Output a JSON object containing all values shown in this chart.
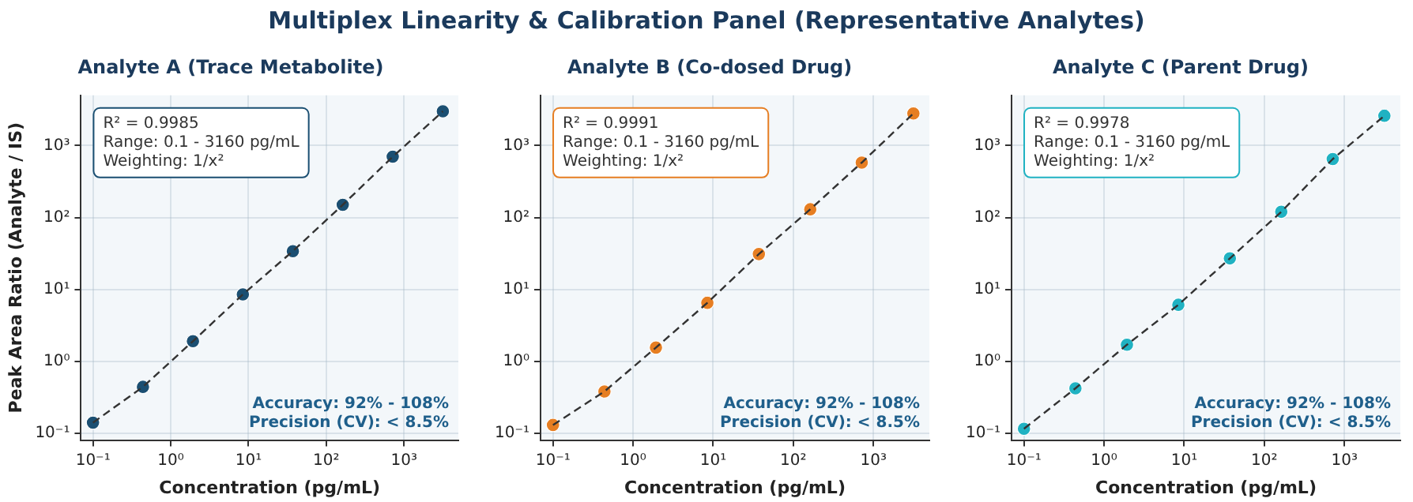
{
  "chart_data": [
    {
      "type": "other",
      "title": "Multiplex Linearity & Calibration Panel (Representative Analytes)"
    },
    {
      "type": "scatter",
      "title": "Analyte A (Trace Metabolite)",
      "xlabel": "Concentration (pg/mL)",
      "ylabel": "Peak Area Ratio (Analyte / IS)",
      "log": "xy",
      "grid": true,
      "marker": "circle",
      "x": [
        0.1,
        0.439,
        1.93,
        8.46,
        37.2,
        163,
        716,
        3160
      ],
      "series": [
        {
          "color": "#1b4f72",
          "values": [
            0.14,
            0.44,
            1.9,
            8.5,
            34,
            150,
            700,
            3000
          ]
        },
        {
          "type": "line",
          "line_style": "dashed",
          "color": "#333333",
          "values": [
            0.14,
            0.44,
            1.9,
            8.5,
            34,
            150,
            700,
            3000
          ],
          "marker": "none"
        }
      ],
      "xlim": [
        0.07,
        5000
      ],
      "ylim": [
        0.08,
        5000
      ],
      "xticks": [
        {
          "value": 0.1,
          "label": "10⁻¹"
        },
        {
          "value": 1,
          "label": "10⁰"
        },
        {
          "value": 10,
          "label": "10¹"
        },
        {
          "value": 100,
          "label": "10²"
        },
        {
          "value": 1000,
          "label": "10³"
        }
      ],
      "yticks": [
        {
          "value": 0.1,
          "label": "10⁻¹"
        },
        {
          "value": 1,
          "label": "10⁰"
        },
        {
          "value": 10,
          "label": "10¹"
        },
        {
          "value": 100,
          "label": "10²"
        },
        {
          "value": 1000,
          "label": "10³"
        }
      ],
      "annotations": [
        "R² = 0.9985",
        "Range: 0.1 - 3160 pg/mL",
        "Weighting: 1/x²",
        "Accuracy: 92% - 108%",
        "Precision (CV): < 8.5%"
      ]
    },
    {
      "type": "scatter",
      "title": "Analyte B (Co-dosed Drug)",
      "xlabel": "Concentration (pg/mL)",
      "log": "xy",
      "grid": true,
      "marker": "circle",
      "x": [
        0.1,
        0.439,
        1.93,
        8.46,
        37.2,
        163,
        716,
        3160
      ],
      "series": [
        {
          "color": "#e67e22",
          "values": [
            0.13,
            0.38,
            1.55,
            6.5,
            31,
            130,
            580,
            2800
          ]
        },
        {
          "type": "line",
          "line_style": "dashed",
          "color": "#333333",
          "values": [
            0.13,
            0.38,
            1.55,
            6.5,
            31,
            130,
            580,
            2800
          ],
          "marker": "none"
        }
      ],
      "xlim": [
        0.07,
        5000
      ],
      "ylim": [
        0.08,
        5000
      ],
      "xticks": [
        {
          "value": 0.1,
          "label": "10⁻¹"
        },
        {
          "value": 1,
          "label": "10⁰"
        },
        {
          "value": 10,
          "label": "10¹"
        },
        {
          "value": 100,
          "label": "10²"
        },
        {
          "value": 1000,
          "label": "10³"
        }
      ],
      "yticks": [
        {
          "value": 0.1,
          "label": "10⁻¹"
        },
        {
          "value": 1,
          "label": "10⁰"
        },
        {
          "value": 10,
          "label": "10¹"
        },
        {
          "value": 100,
          "label": "10²"
        },
        {
          "value": 1000,
          "label": "10³"
        }
      ],
      "annotations": [
        "R² = 0.9991",
        "Range: 0.1 - 3160 pg/mL",
        "Weighting: 1/x²",
        "Accuracy: 92% - 108%",
        "Precision (CV): < 8.5%"
      ]
    },
    {
      "type": "scatter",
      "title": "Analyte C (Parent Drug)",
      "xlabel": "Concentration (pg/mL)",
      "log": "xy",
      "grid": true,
      "marker": "circle",
      "x": [
        0.1,
        0.439,
        1.93,
        8.46,
        37.2,
        163,
        716,
        3160
      ],
      "series": [
        {
          "color": "#20b2c2",
          "values": [
            0.115,
            0.42,
            1.7,
            6.1,
            27,
            120,
            650,
            2600
          ]
        },
        {
          "type": "line",
          "line_style": "dashed",
          "color": "#333333",
          "values": [
            0.115,
            0.42,
            1.7,
            6.1,
            27,
            120,
            650,
            2600
          ],
          "marker": "none"
        }
      ],
      "xlim": [
        0.07,
        5000
      ],
      "ylim": [
        0.08,
        5000
      ],
      "xticks": [
        {
          "value": 0.1,
          "label": "10⁻¹"
        },
        {
          "value": 1,
          "label": "10⁰"
        },
        {
          "value": 10,
          "label": "10¹"
        },
        {
          "value": 100,
          "label": "10²"
        },
        {
          "value": 1000,
          "label": "10³"
        }
      ],
      "yticks": [
        {
          "value": 0.1,
          "label": "10⁻¹"
        },
        {
          "value": 1,
          "label": "10⁰"
        },
        {
          "value": 10,
          "label": "10¹"
        },
        {
          "value": 100,
          "label": "10²"
        },
        {
          "value": 1000,
          "label": "10³"
        }
      ],
      "annotations": [
        "R² = 0.9978",
        "Range: 0.1 - 3160 pg/mL",
        "Weighting: 1/x²",
        "Accuracy: 92% - 108%",
        "Precision (CV): < 8.5%"
      ]
    }
  ]
}
